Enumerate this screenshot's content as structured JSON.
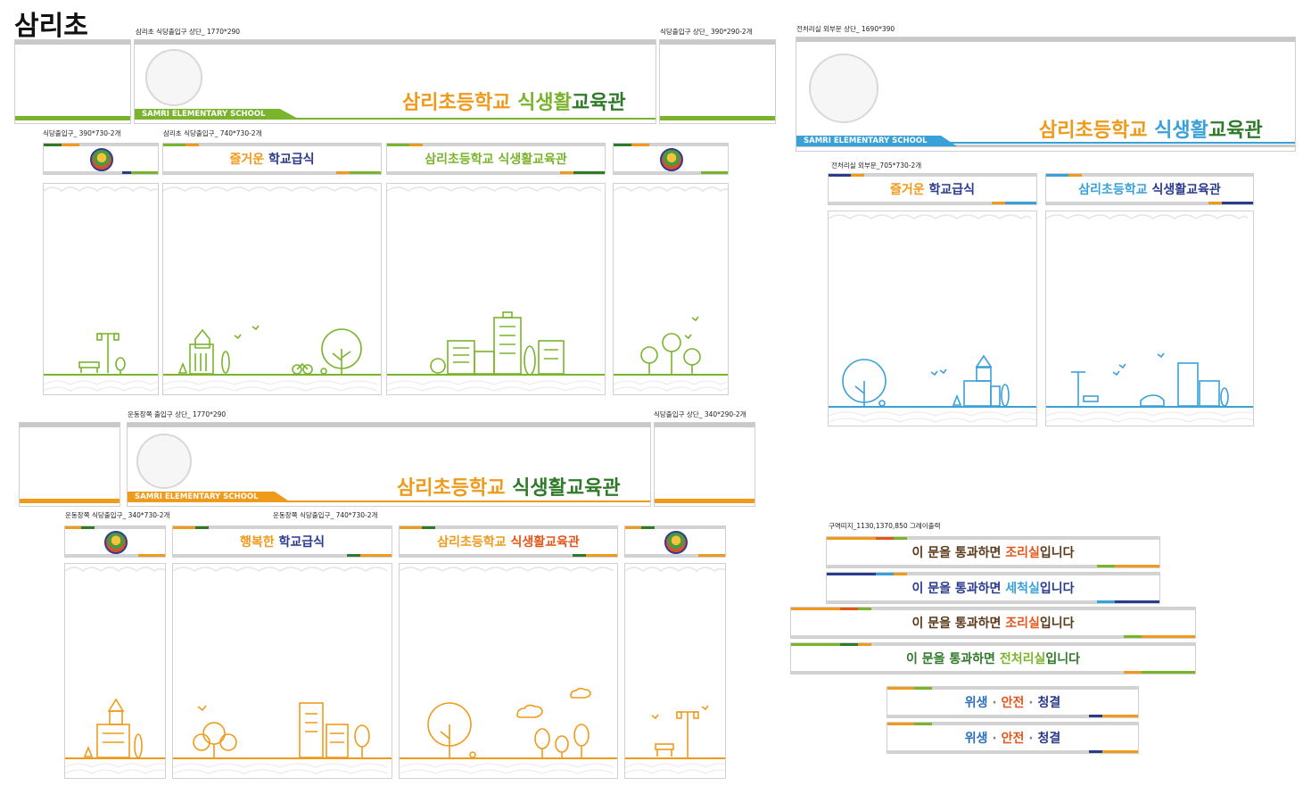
{
  "page_title": "삼리초",
  "colors": {
    "green": "#7ab42c",
    "dark_green": "#2f7a2a",
    "orange": "#ef9a1a",
    "navy": "#2a3a8c",
    "blue": "#3aa0d8",
    "brown": "#5a3a1a",
    "red_orange": "#e2561c",
    "gray": "#c9c9c9"
  },
  "labels": {
    "green_top_main": "삼리초 식당출입구 상단_ 1770*290",
    "green_top_side": "식당출입구 상단_ 390*290-2개",
    "green_panel_small": "식당출입구_ 390*730-2개",
    "green_panel_large": "삼리초 식당출입구_ 740*730-2개",
    "blue_top": "전처리실 외부문 상단_ 1690*390",
    "blue_panel": "전처리실 외부문_705*730-2개",
    "orange_top_main": "운동장쪽 출입구 상단_ 1770*290",
    "orange_top_side": "식당출입구 상단_ 340*290-2개",
    "orange_panel_small": "운동장쪽 식당출입구_ 340*730-2개",
    "orange_panel_large": "운동장쪽 식당출입구_ 740*730-2개",
    "signs": "구역띠지_1130,1370,850 그레이출력"
  },
  "banner": {
    "school_en": "SAMRI ELEMENTARY SCHOOL",
    "title_part1": "삼리초등학교",
    "title_part2": "식생활",
    "title_part3": "교육관"
  },
  "headers": {
    "green_left_a": "즐거운",
    "green_left_b": "학교급식",
    "green_right": "삼리초등학교 식생활교육관",
    "blue_left_a": "즐거운",
    "blue_left_b": "학교급식",
    "blue_right_a": "삼리초등학교",
    "blue_right_b": "식생활교육관",
    "orange_left_a": "행복한",
    "orange_left_b": "학교급식",
    "orange_right_a": "삼리초등학교",
    "orange_right_b": "식생활교육관"
  },
  "signs": [
    {
      "prefix": "이 문을 통과하면 ",
      "place": "조리실",
      "suffix": "입니다"
    },
    {
      "prefix": "이 문을 통과하면 ",
      "place": "세척실",
      "suffix": "입니다"
    },
    {
      "prefix": "이 문을 통과하면 ",
      "place": "조리실",
      "suffix": "입니다"
    },
    {
      "prefix": "이 문을 통과하면 ",
      "place": "전처리실",
      "suffix": "입니다"
    }
  ],
  "hygiene": {
    "a": "위생",
    "sep": "·",
    "b": "안전",
    "c": "청결"
  }
}
